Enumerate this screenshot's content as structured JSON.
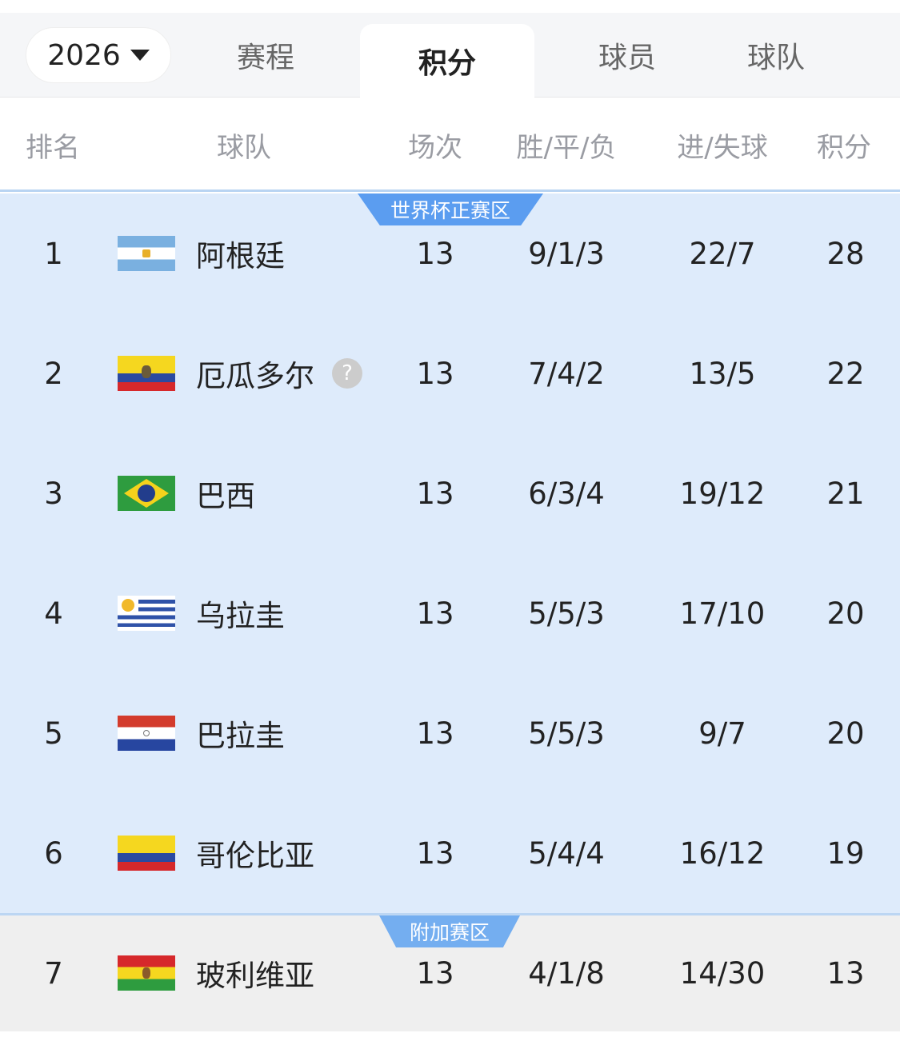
{
  "year_selector": {
    "value": "2026"
  },
  "tabs": [
    {
      "label": "赛程"
    },
    {
      "label": "积分",
      "active": true
    },
    {
      "label": "球员"
    },
    {
      "label": "球队"
    }
  ],
  "columns": [
    "排名",
    "球队",
    "场次",
    "胜/平/负",
    "进/失球",
    "积分"
  ],
  "sections": [
    {
      "label": "世界杯正赛区",
      "color": "#5b9df0"
    },
    {
      "label": "附加赛区",
      "color": "#74aef0"
    }
  ],
  "rows": [
    {
      "rank": "1",
      "team": "阿根廷",
      "flag": "argentina",
      "played": "13",
      "wdl": "9/1/3",
      "goals": "22/7",
      "points": "28"
    },
    {
      "rank": "2",
      "team": "厄瓜多尔",
      "flag": "ecuador",
      "played": "13",
      "wdl": "7/4/2",
      "goals": "13/5",
      "points": "22",
      "help_icon": "?"
    },
    {
      "rank": "3",
      "team": "巴西",
      "flag": "brazil",
      "played": "13",
      "wdl": "6/3/4",
      "goals": "19/12",
      "points": "21"
    },
    {
      "rank": "4",
      "team": "乌拉圭",
      "flag": "uruguay",
      "played": "13",
      "wdl": "5/5/3",
      "goals": "17/10",
      "points": "20"
    },
    {
      "rank": "5",
      "team": "巴拉圭",
      "flag": "paraguay",
      "played": "13",
      "wdl": "5/5/3",
      "goals": "9/7",
      "points": "20"
    },
    {
      "rank": "6",
      "team": "哥伦比亚",
      "flag": "colombia",
      "played": "13",
      "wdl": "5/4/4",
      "goals": "16/12",
      "points": "19"
    },
    {
      "rank": "7",
      "team": "玻利维亚",
      "flag": "bolivia",
      "played": "13",
      "wdl": "4/1/8",
      "goals": "14/30",
      "points": "13"
    }
  ]
}
